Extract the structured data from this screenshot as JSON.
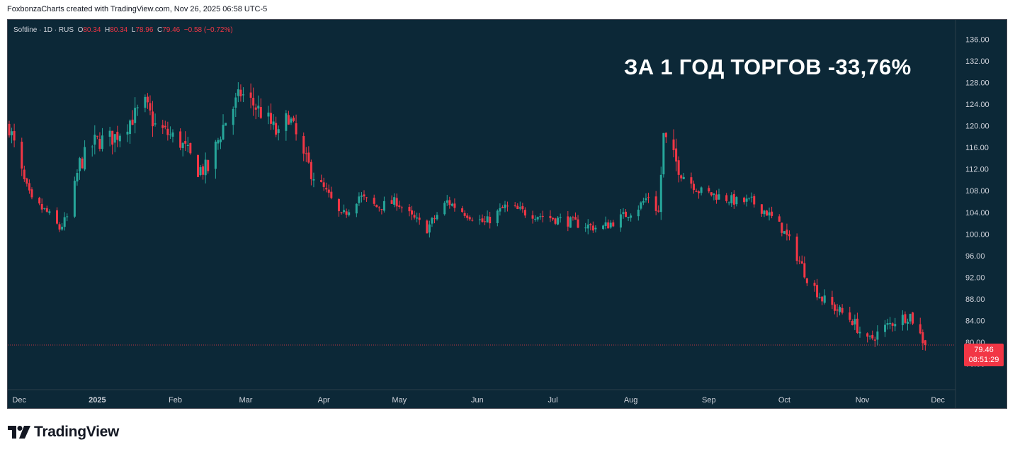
{
  "credit": "FoxbonzaCharts created with TradingView.com, Nov 26, 2025 06:58 UTC-5",
  "legend": {
    "symbol": "Softline · 1D · RUS",
    "open": "80.34",
    "high": "80.34",
    "low": "78.96",
    "close": "79.46",
    "change": "−0.58 (−0.72%)"
  },
  "headline": "ЗА 1 ГОД ТОРГОВ -33,76%",
  "price_tag": {
    "price": "79.46",
    "countdown": "08:51:29"
  },
  "logo_text": "TradingView",
  "colors": {
    "background": "#0c2837",
    "up": "#26a69a",
    "down": "#f23645",
    "axis_text": "#d1d4dc"
  },
  "chart_data": {
    "type": "candlestick",
    "interval": "1D",
    "y_ticks": [
      "76.00",
      "80.00",
      "84.00",
      "88.00",
      "92.00",
      "96.00",
      "100.00",
      "104.00",
      "108.00",
      "112.00",
      "116.00",
      "120.00",
      "124.00",
      "128.00",
      "132.00",
      "136.00"
    ],
    "ylim": [
      75,
      137
    ],
    "x_labels": [
      "Dec",
      "2025",
      "Feb",
      "Mar",
      "Apr",
      "May",
      "Jun",
      "Jul",
      "Aug",
      "Sep",
      "Oct",
      "Nov",
      "Dec"
    ],
    "x_label_dates": [
      "2024-12-01",
      "2025-01-01",
      "2025-02-01",
      "2025-03-01",
      "2025-04-01",
      "2025-05-01",
      "2025-06-01",
      "2025-07-01",
      "2025-08-01",
      "2025-09-01",
      "2025-10-01",
      "2025-11-01",
      "2025-12-01"
    ],
    "xlim": [
      "2024-11-27",
      "2025-12-08"
    ],
    "last_price": 79.46,
    "price_path": [
      [
        "2024-11-27",
        120
      ],
      [
        "2024-12-02",
        111
      ],
      [
        "2024-12-06",
        106
      ],
      [
        "2024-12-12",
        104
      ],
      [
        "2024-12-17",
        101
      ],
      [
        "2024-12-20",
        103
      ],
      [
        "2024-12-25",
        113
      ],
      [
        "2024-12-31",
        117
      ],
      [
        "2025-01-08",
        118
      ],
      [
        "2025-01-14",
        121
      ],
      [
        "2025-01-20",
        124
      ],
      [
        "2025-01-24",
        120
      ],
      [
        "2025-02-03",
        117
      ],
      [
        "2025-02-10",
        112
      ],
      [
        "2025-02-14",
        112
      ],
      [
        "2025-02-20",
        120
      ],
      [
        "2025-02-27",
        126
      ],
      [
        "2025-03-04",
        124
      ],
      [
        "2025-03-10",
        121
      ],
      [
        "2025-03-14",
        118
      ],
      [
        "2025-03-18",
        122
      ],
      [
        "2025-03-24",
        114
      ],
      [
        "2025-03-28",
        111
      ],
      [
        "2025-04-03",
        107
      ],
      [
        "2025-04-08",
        103
      ],
      [
        "2025-04-15",
        107
      ],
      [
        "2025-04-22",
        105
      ],
      [
        "2025-04-30",
        106
      ],
      [
        "2025-05-06",
        103
      ],
      [
        "2025-05-12",
        101
      ],
      [
        "2025-05-20",
        106
      ],
      [
        "2025-05-27",
        104
      ],
      [
        "2025-06-04",
        102
      ],
      [
        "2025-06-12",
        105
      ],
      [
        "2025-06-20",
        104
      ],
      [
        "2025-06-30",
        103
      ],
      [
        "2025-07-10",
        102
      ],
      [
        "2025-07-20",
        101
      ],
      [
        "2025-07-28",
        103
      ],
      [
        "2025-08-04",
        105
      ],
      [
        "2025-08-08",
        107
      ],
      [
        "2025-08-12",
        104
      ],
      [
        "2025-08-14",
        118
      ],
      [
        "2025-08-18",
        114
      ],
      [
        "2025-08-22",
        111
      ],
      [
        "2025-08-28",
        108
      ],
      [
        "2025-09-05",
        107
      ],
      [
        "2025-09-12",
        106
      ],
      [
        "2025-09-18",
        106
      ],
      [
        "2025-09-24",
        104
      ],
      [
        "2025-09-30",
        101
      ],
      [
        "2025-10-05",
        97
      ],
      [
        "2025-10-10",
        92
      ],
      [
        "2025-10-16",
        88
      ],
      [
        "2025-10-22",
        86
      ],
      [
        "2025-10-28",
        84
      ],
      [
        "2025-11-03",
        80
      ],
      [
        "2025-11-08",
        82
      ],
      [
        "2025-11-14",
        84
      ],
      [
        "2025-11-20",
        85
      ],
      [
        "2025-11-26",
        79.46
      ]
    ]
  }
}
